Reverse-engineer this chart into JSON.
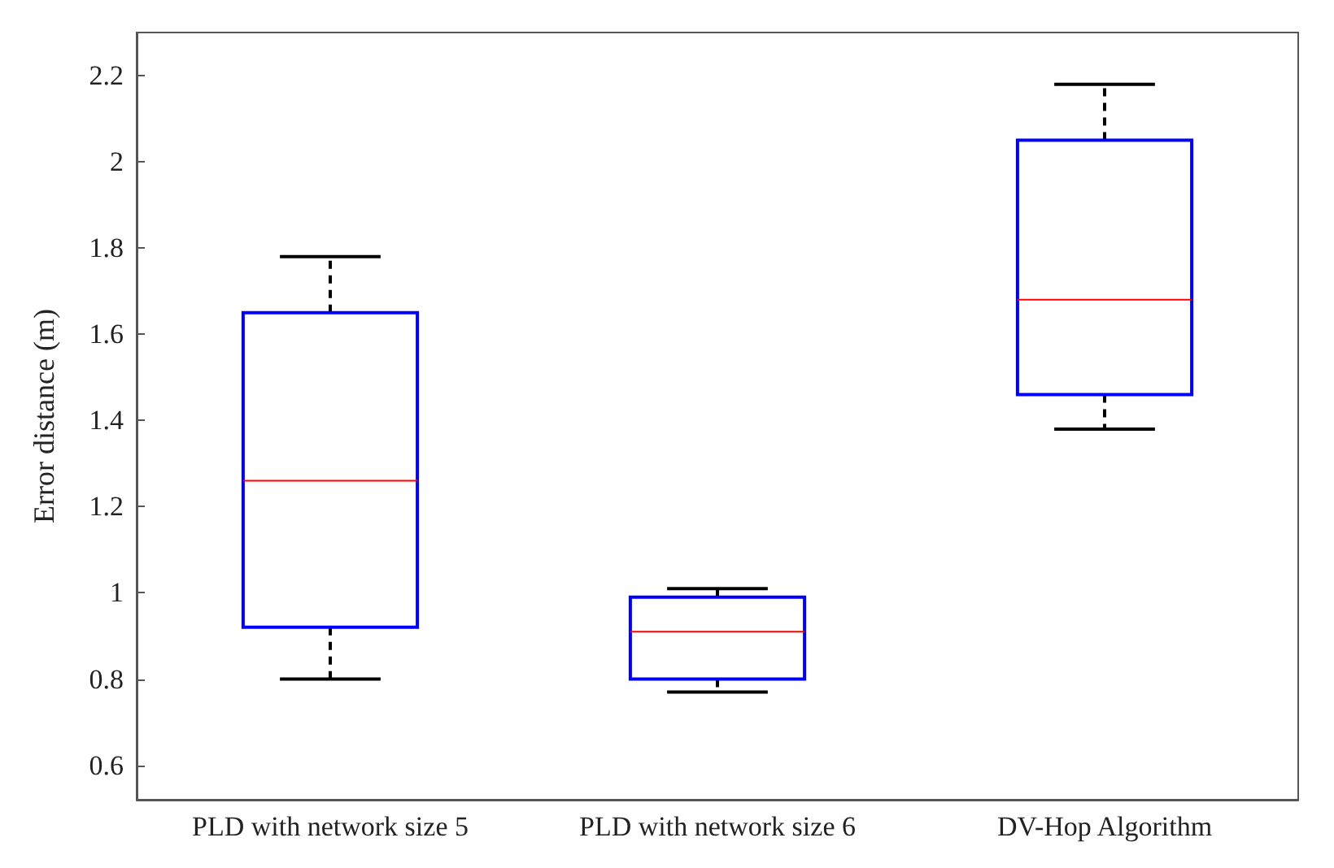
{
  "chart_data": {
    "type": "box",
    "ylabel": "Error distance (m)",
    "categories": [
      "PLD with network size 5",
      "PLD with network size 6",
      "DV-Hop Algorithm"
    ],
    "boxes": [
      {
        "low": 0.8,
        "q1": 0.92,
        "median": 1.26,
        "q3": 1.65,
        "high": 1.78
      },
      {
        "low": 0.77,
        "q1": 0.8,
        "median": 0.91,
        "q3": 0.99,
        "high": 1.01
      },
      {
        "low": 1.38,
        "q1": 1.46,
        "median": 1.68,
        "q3": 2.05,
        "high": 2.18
      }
    ],
    "color": "#0000ff",
    "ylim": [
      0.52,
      2.3
    ],
    "yticks": [
      0.6,
      0.8,
      1,
      1.2,
      1.4,
      1.6,
      1.8,
      2,
      2.2
    ],
    "grid": false
  }
}
